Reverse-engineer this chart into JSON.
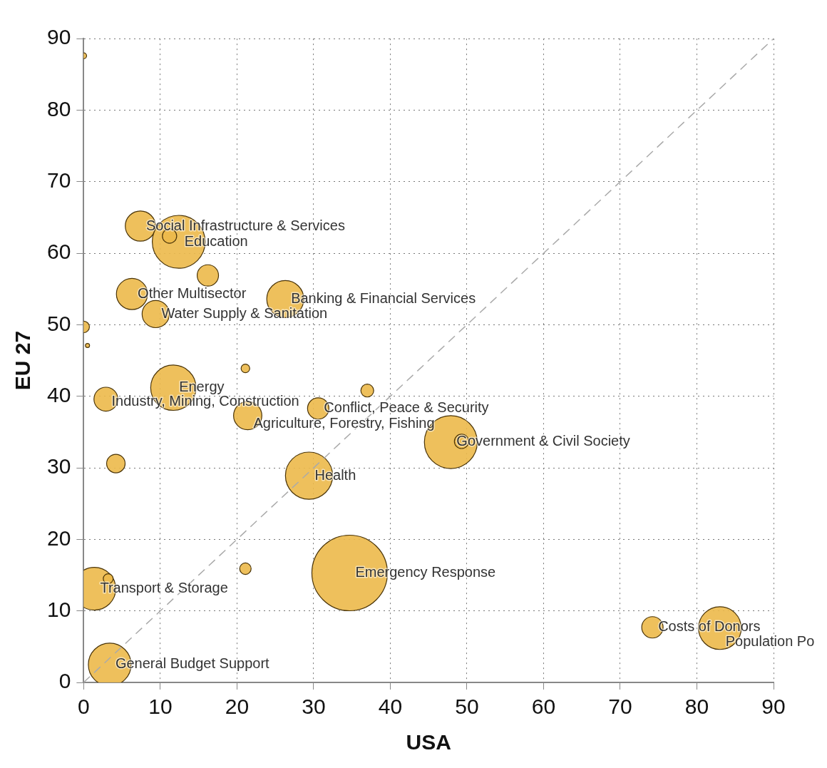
{
  "chart_data": {
    "type": "bubble",
    "xlabel": "USA",
    "ylabel": "EU 27",
    "xlim": [
      0,
      90
    ],
    "ylim": [
      0,
      90
    ],
    "xticks": [
      0,
      10,
      20,
      30,
      40,
      50,
      60,
      70,
      80,
      90
    ],
    "yticks": [
      0,
      10,
      20,
      30,
      40,
      50,
      60,
      70,
      80,
      90
    ],
    "grid": true,
    "legend": false,
    "series": [
      {
        "type": "bubble",
        "color": "#ecb94a",
        "x": [
          0,
          7.4,
          12.4,
          11.2,
          16.2,
          6.3,
          9.4,
          26.3,
          0,
          0.5,
          21.1,
          37,
          11.7,
          2.9,
          30.6,
          21.4,
          47.9,
          49.3,
          4.2,
          29.4,
          21.1,
          34.7,
          1.4,
          3.2,
          74.2,
          83,
          3.4
        ],
        "values": [
          87.6,
          63.8,
          61.6,
          62.4,
          56.9,
          54.3,
          51.5,
          53.6,
          49.7,
          47.1,
          43.9,
          40.8,
          41.2,
          39.6,
          38.3,
          37.3,
          33.6,
          33.7,
          30.6,
          28.9,
          15.9,
          15.3,
          13.1,
          14.5,
          7.7,
          7.6,
          2.5
        ],
        "sizes": [
          0.006,
          0.16,
          0.49,
          0.036,
          0.08,
          0.17,
          0.13,
          0.24,
          0.023,
          0.003,
          0.013,
          0.029,
          0.36,
          0.1,
          0.08,
          0.14,
          0.49,
          0.036,
          0.06,
          0.39,
          0.023,
          1,
          0.32,
          0.017,
          0.08,
          0.32,
          0.32
        ]
      },
      {
        "type": "line",
        "color": "#aaaaaa",
        "x": [
          0,
          90
        ],
        "values": [
          0,
          90
        ],
        "line_style": "dashed",
        "marker": "none"
      }
    ],
    "annotations": [
      {
        "text": "Social Infrastructure & Services",
        "x": 7.4,
        "y": 63.8
      },
      {
        "text": "Education",
        "x": 12.4,
        "y": 61.6
      },
      {
        "text": "Other Multisector",
        "x": 6.3,
        "y": 54.3
      },
      {
        "text": "Water Supply & Sanitation",
        "x": 9.4,
        "y": 51.5
      },
      {
        "text": "Banking & Financial Services",
        "x": 26.3,
        "y": 53.6
      },
      {
        "text": "Energy",
        "x": 11.7,
        "y": 41.2
      },
      {
        "text": "Industry, Mining, Construction",
        "x": 2.9,
        "y": 39.6
      },
      {
        "text": "Conflict, Peace & Security",
        "x": 30.6,
        "y": 38.3
      },
      {
        "text": "Agriculture, Forestry, Fishing",
        "x": 21.4,
        "y": 37.3
      },
      {
        "text": "Government & Civil Society",
        "x": 47.9,
        "y": 33.6
      },
      {
        "text": "Health",
        "x": 29.4,
        "y": 28.9
      },
      {
        "text": "Emergency Response",
        "x": 34.7,
        "y": 15.3
      },
      {
        "text": "Transport & Storage",
        "x": 1.4,
        "y": 13.1
      },
      {
        "text": "Costs of Donors",
        "x": 74.2,
        "y": 7.7
      },
      {
        "text": "Population Po",
        "x": 83,
        "y": 7.6
      },
      {
        "text": "General Budget Support",
        "x": 3.4,
        "y": 2.5
      }
    ]
  }
}
